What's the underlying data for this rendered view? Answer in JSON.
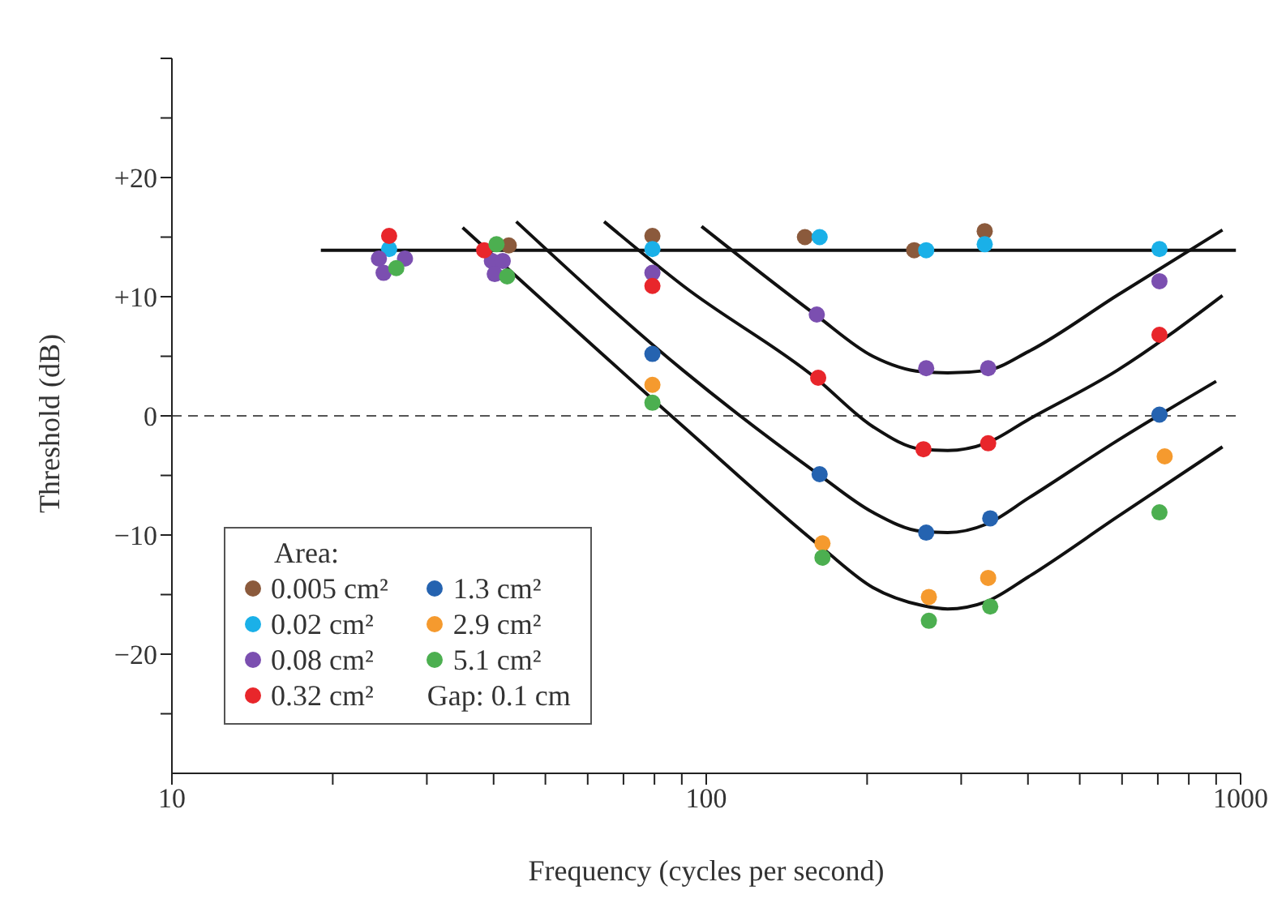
{
  "chart_data": {
    "type": "scatter",
    "xlabel": "Frequency (cycles per second)",
    "ylabel": "Threshold (dB)",
    "legend_title": "Area:",
    "legend": "bottom left",
    "log": "x",
    "grid": false,
    "marker": "circle",
    "xlim": [
      10,
      1000
    ],
    "xticks": [
      10,
      {
        "value": 20,
        "label": null
      },
      {
        "value": 30,
        "label": null
      },
      {
        "value": 40,
        "label": null
      },
      {
        "value": 50,
        "label": null
      },
      {
        "value": 60,
        "label": null
      },
      {
        "value": 70,
        "label": null
      },
      {
        "value": 80,
        "label": null
      },
      {
        "value": 90,
        "label": null
      },
      100,
      {
        "value": 200,
        "label": null
      },
      {
        "value": 300,
        "label": null
      },
      {
        "value": 400,
        "label": null
      },
      {
        "value": 500,
        "label": null
      },
      {
        "value": 600,
        "label": null
      },
      {
        "value": 700,
        "label": null
      },
      {
        "value": 800,
        "label": null
      },
      {
        "value": 900,
        "label": null
      },
      1000
    ],
    "ylim": [
      -30,
      30
    ],
    "yticks": [
      {
        "value": -25,
        "label": null
      },
      {
        "value": -20,
        "label": "−20"
      },
      {
        "value": -15,
        "label": null
      },
      {
        "value": -10,
        "label": "−10"
      },
      {
        "value": -5,
        "label": null
      },
      0,
      {
        "value": 5,
        "label": null
      },
      {
        "value": 10,
        "label": "+10"
      },
      {
        "value": 15,
        "label": null
      },
      {
        "value": 20,
        "label": "+20"
      },
      {
        "value": 25,
        "label": null
      },
      {
        "value": 30,
        "label": null
      }
    ],
    "ref_lines": [
      {
        "axis": "y",
        "value": 0,
        "color": "#555555",
        "line_style": "dashed"
      }
    ],
    "annotations": [
      "Gap: 0.1 cm"
    ],
    "series": [
      {
        "name": "0.005 cm²",
        "color": "#8b5a3c",
        "x": [
          42.7,
          79.3,
          153,
          245,
          332
        ],
        "values": [
          14.3,
          15.1,
          15.0,
          13.9,
          15.5
        ]
      },
      {
        "name": "0.02 cm²",
        "color": "#1ab0e8",
        "x": [
          25.5,
          79.3,
          163,
          258,
          332,
          705
        ],
        "values": [
          14.0,
          14.0,
          15.0,
          13.9,
          14.4,
          14.0
        ]
      },
      {
        "name": "0.08 cm²",
        "color": "#7b4fb0",
        "x": [
          24.4,
          27.3,
          24.9,
          39.7,
          41.6,
          40.2,
          79.3,
          161,
          258,
          337,
          705
        ],
        "values": [
          13.2,
          13.2,
          12.0,
          13.0,
          13.0,
          11.9,
          12.0,
          8.5,
          4.0,
          4.0,
          11.3
        ]
      },
      {
        "name": "0.32 cm²",
        "color": "#e8262b",
        "x": [
          25.5,
          38.4,
          79.3,
          162,
          255,
          337,
          705
        ],
        "values": [
          15.1,
          13.9,
          10.9,
          3.2,
          -2.8,
          -2.3,
          6.8
        ]
      },
      {
        "name": "1.3 cm²",
        "color": "#2563b0",
        "x": [
          79.3,
          163,
          258,
          340,
          705
        ],
        "values": [
          5.2,
          -4.9,
          -9.8,
          -8.6,
          0.1
        ]
      },
      {
        "name": "2.9 cm²",
        "color": "#f59a2e",
        "x": [
          79.3,
          165,
          261,
          337,
          721
        ],
        "values": [
          2.6,
          -10.7,
          -15.2,
          -13.6,
          -3.4
        ]
      },
      {
        "name": "5.1 cm²",
        "color": "#4caf50",
        "x": [
          26.3,
          40.5,
          42.4,
          79.3,
          165,
          261,
          340,
          705
        ],
        "values": [
          12.4,
          14.4,
          11.7,
          1.1,
          -11.9,
          -17.2,
          -16.0,
          -8.1
        ]
      },
      {
        "type": "line",
        "marker": "none",
        "line_style": "solid",
        "color": "#111111",
        "x": [
          19,
          980
        ],
        "values": [
          13.9,
          13.9
        ]
      },
      {
        "type": "line",
        "marker": "none",
        "line_style": "solid",
        "color": "#111111",
        "x": [
          98,
          160,
          205,
          253,
          283,
          334,
          401,
          587,
          925
        ],
        "values": [
          15.9,
          8.5,
          5.0,
          3.7,
          3.6,
          3.8,
          5.4,
          10.1,
          15.6
        ]
      },
      {
        "type": "line",
        "marker": "none",
        "line_style": "solid",
        "color": "#111111",
        "x": [
          64.4,
          90.6,
          160,
          205,
          253,
          283,
          334,
          401,
          587,
          925
        ],
        "values": [
          16.3,
          10.9,
          3.2,
          -0.9,
          -2.8,
          -2.9,
          -2.3,
          -0.3,
          3.8,
          10.1
        ]
      },
      {
        "type": "line",
        "marker": "none",
        "line_style": "solid",
        "color": "#111111",
        "x": [
          44.1,
          90.6,
          161,
          205,
          253,
          283,
          334,
          401,
          587,
          900
        ],
        "values": [
          16.3,
          3.8,
          -4.8,
          -8.1,
          -9.7,
          -9.8,
          -9.1,
          -6.9,
          -2.1,
          2.9
        ]
      },
      {
        "type": "line",
        "marker": "none",
        "line_style": "solid",
        "color": "#111111",
        "x": [
          35.0,
          90.6,
          165,
          205,
          253,
          283,
          334,
          401,
          587,
          925
        ],
        "values": [
          15.8,
          -0.9,
          -11.1,
          -14.4,
          -15.9,
          -16.2,
          -15.6,
          -13.5,
          -8.5,
          -2.6
        ]
      }
    ]
  }
}
